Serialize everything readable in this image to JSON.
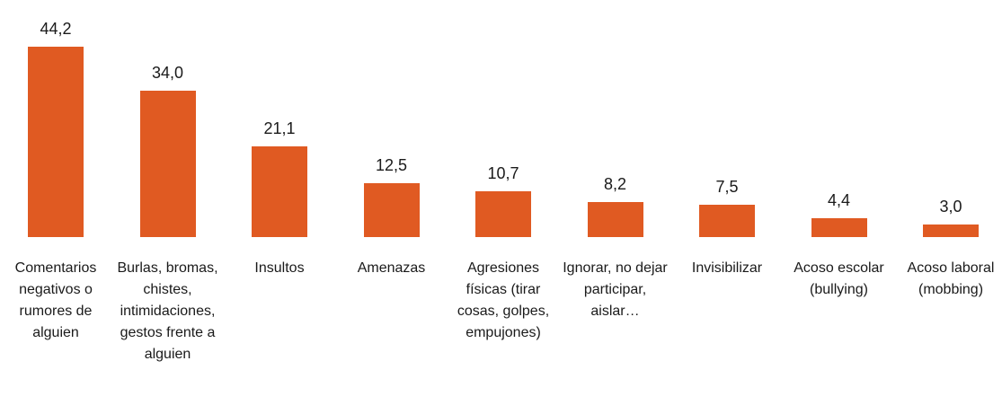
{
  "chart_data": {
    "type": "bar",
    "categories": [
      "Comentarios negativos o rumores de alguien",
      "Burlas, bromas, chistes, intimidaciones, gestos frente a alguien",
      "Insultos",
      "Amenazas",
      "Agresiones físicas (tirar cosas, golpes, empujones)",
      "Ignorar, no dejar participar, aislar…",
      "Invisibilizar",
      "Acoso escolar (bullying)",
      "Acoso laboral (mobbing)"
    ],
    "values": [
      44.2,
      34.0,
      21.1,
      12.5,
      10.7,
      8.2,
      7.5,
      4.4,
      3.0
    ],
    "value_labels": [
      "44,2",
      "34,0",
      "21,1",
      "12,5",
      "10,7",
      "8,2",
      "7,5",
      "4,4",
      "3,0"
    ],
    "color": "#e05a22"
  }
}
